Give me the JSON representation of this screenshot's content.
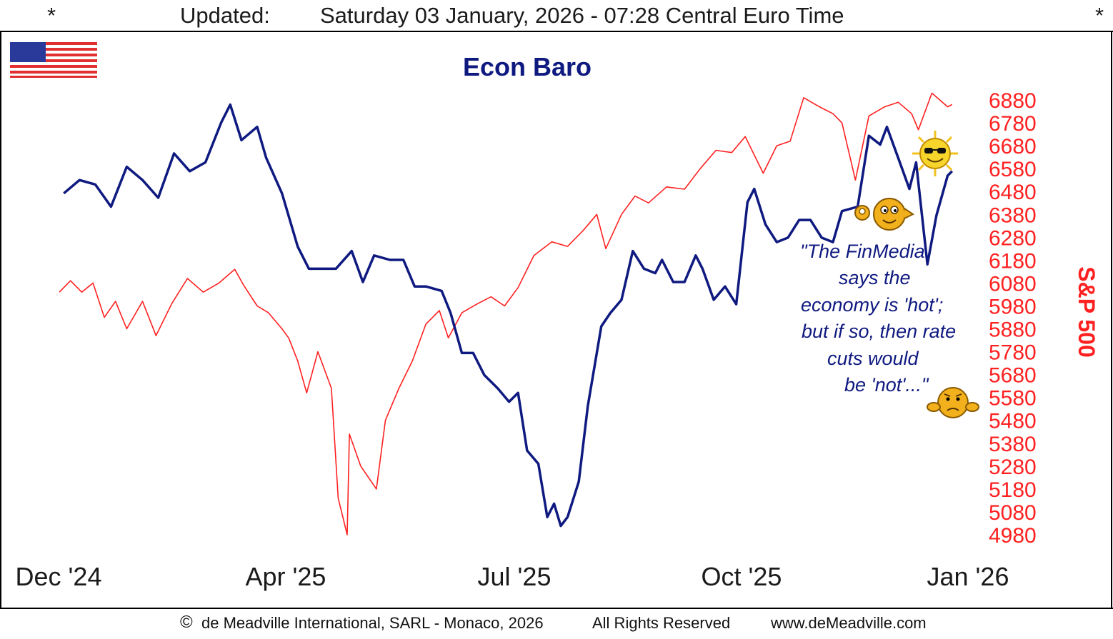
{
  "header": {
    "star_left": "*",
    "updated_label": "Updated:",
    "updated_text": "Saturday 03 January, 2026 - 07:28 Central Euro Time",
    "star_right": "*"
  },
  "flag_icon": "us-flag-icon",
  "annotation": [
    "\"The FinMedia",
    "says the",
    "economy is 'hot';",
    "but if so, then rate",
    "cuts would",
    "be 'not'...\""
  ],
  "icons": [
    "ok-gesture-smiley-icon",
    "sunglasses-sun-icon",
    "worried-smiley-icon"
  ],
  "footer": {
    "copyright_symbol": "©",
    "copyright": "de Meadville International, SARL - Monaco, 2026",
    "rights": "All Rights Reserved",
    "website": "www.deMeadville.com"
  },
  "colors": {
    "baro": "#0f1a80",
    "spx": "#ff2020",
    "title": "#0f1a80",
    "frame": "#000000"
  },
  "chart_data": {
    "type": "line",
    "title": "Econ Baro",
    "xlabel": "",
    "x_tick_labels": [
      "Dec '24",
      "Apr '25",
      "Jul '25",
      "Oct '25",
      "Jan '26"
    ],
    "x_tick_dates": [
      "2024-12-01",
      "2025-04-01",
      "2025-07-01",
      "2025-10-01",
      "2026-01-01"
    ],
    "xlim": [
      "2024-12-01",
      "2026-01-10"
    ],
    "y_right": {
      "label": "S&P 500",
      "ticks": [
        6880,
        6780,
        6680,
        6580,
        6480,
        6380,
        6280,
        6180,
        6080,
        5980,
        5880,
        5780,
        5680,
        5580,
        5480,
        5380,
        5280,
        5180,
        5080,
        4980
      ],
      "ylim": [
        4980,
        6880
      ]
    },
    "series": [
      {
        "name": "Econ Baro",
        "axis": "unlabeled",
        "ylim": [
          0,
          100
        ],
        "points": [
          [
            "2024-12-03",
            77
          ],
          [
            "2024-12-10",
            80
          ],
          [
            "2024-12-17",
            79
          ],
          [
            "2024-12-24",
            74
          ],
          [
            "2024-12-31",
            83
          ],
          [
            "2025-01-07",
            80
          ],
          [
            "2025-01-14",
            76
          ],
          [
            "2025-01-21",
            86
          ],
          [
            "2025-01-28",
            82
          ],
          [
            "2025-02-04",
            84
          ],
          [
            "2025-02-11",
            93
          ],
          [
            "2025-02-15",
            97
          ],
          [
            "2025-02-20",
            89
          ],
          [
            "2025-02-27",
            92
          ],
          [
            "2025-03-03",
            85
          ],
          [
            "2025-03-10",
            77
          ],
          [
            "2025-03-17",
            65
          ],
          [
            "2025-03-22",
            60
          ],
          [
            "2025-03-27",
            60
          ],
          [
            "2025-04-03",
            60
          ],
          [
            "2025-04-10",
            64
          ],
          [
            "2025-04-15",
            57
          ],
          [
            "2025-04-20",
            63
          ],
          [
            "2025-04-27",
            62
          ],
          [
            "2025-05-03",
            62
          ],
          [
            "2025-05-08",
            56
          ],
          [
            "2025-05-13",
            56
          ],
          [
            "2025-05-20",
            55
          ],
          [
            "2025-05-24",
            50
          ],
          [
            "2025-05-29",
            41
          ],
          [
            "2025-06-03",
            41
          ],
          [
            "2025-06-08",
            36
          ],
          [
            "2025-06-14",
            33
          ],
          [
            "2025-06-19",
            30
          ],
          [
            "2025-06-23",
            32
          ],
          [
            "2025-06-27",
            19
          ],
          [
            "2025-07-02",
            16
          ],
          [
            "2025-07-06",
            4
          ],
          [
            "2025-07-09",
            7
          ],
          [
            "2025-07-12",
            2
          ],
          [
            "2025-07-15",
            4
          ],
          [
            "2025-07-20",
            12
          ],
          [
            "2025-07-24",
            29
          ],
          [
            "2025-07-30",
            47
          ],
          [
            "2025-08-03",
            50
          ],
          [
            "2025-08-08",
            53
          ],
          [
            "2025-08-13",
            64
          ],
          [
            "2025-08-18",
            60
          ],
          [
            "2025-08-23",
            59
          ],
          [
            "2025-08-26",
            62
          ],
          [
            "2025-08-31",
            57
          ],
          [
            "2025-09-05",
            57
          ],
          [
            "2025-09-10",
            63
          ],
          [
            "2025-09-13",
            60
          ],
          [
            "2025-09-18",
            53
          ],
          [
            "2025-09-23",
            56
          ],
          [
            "2025-09-28",
            52
          ],
          [
            "2025-10-03",
            75
          ],
          [
            "2025-10-06",
            78
          ],
          [
            "2025-10-11",
            70
          ],
          [
            "2025-10-16",
            66
          ],
          [
            "2025-10-21",
            67
          ],
          [
            "2025-10-26",
            71
          ],
          [
            "2025-10-31",
            71
          ],
          [
            "2025-11-05",
            67
          ],
          [
            "2025-11-10",
            66
          ],
          [
            "2025-11-14",
            73
          ],
          [
            "2025-11-21",
            74
          ],
          [
            "2025-11-26",
            90
          ],
          [
            "2025-12-01",
            88
          ],
          [
            "2025-12-04",
            92
          ],
          [
            "2025-12-09",
            85
          ],
          [
            "2025-12-14",
            78
          ],
          [
            "2025-12-17",
            84
          ],
          [
            "2025-12-22",
            61
          ],
          [
            "2025-12-26",
            72
          ],
          [
            "2025-12-31",
            81
          ],
          [
            "2026-01-02",
            82
          ]
        ]
      },
      {
        "name": "S&P 500",
        "axis": "right",
        "points": [
          [
            "2024-12-01",
            6040
          ],
          [
            "2024-12-06",
            6090
          ],
          [
            "2024-12-11",
            6040
          ],
          [
            "2024-12-16",
            6080
          ],
          [
            "2024-12-21",
            5930
          ],
          [
            "2024-12-26",
            6000
          ],
          [
            "2024-12-31",
            5880
          ],
          [
            "2025-01-07",
            6000
          ],
          [
            "2025-01-13",
            5850
          ],
          [
            "2025-01-20",
            5990
          ],
          [
            "2025-01-27",
            6100
          ],
          [
            "2025-02-03",
            6040
          ],
          [
            "2025-02-10",
            6080
          ],
          [
            "2025-02-17",
            6140
          ],
          [
            "2025-02-21",
            6070
          ],
          [
            "2025-02-27",
            5980
          ],
          [
            "2025-03-04",
            5950
          ],
          [
            "2025-03-10",
            5880
          ],
          [
            "2025-03-13",
            5840
          ],
          [
            "2025-03-17",
            5740
          ],
          [
            "2025-03-21",
            5600
          ],
          [
            "2025-03-26",
            5780
          ],
          [
            "2025-04-01",
            5620
          ],
          [
            "2025-04-04",
            5140
          ],
          [
            "2025-04-08",
            4980
          ],
          [
            "2025-04-09",
            5420
          ],
          [
            "2025-04-14",
            5280
          ],
          [
            "2025-04-21",
            5180
          ],
          [
            "2025-04-25",
            5480
          ],
          [
            "2025-05-01",
            5620
          ],
          [
            "2025-05-07",
            5740
          ],
          [
            "2025-05-13",
            5900
          ],
          [
            "2025-05-19",
            5960
          ],
          [
            "2025-05-23",
            5840
          ],
          [
            "2025-05-29",
            5950
          ],
          [
            "2025-06-05",
            5990
          ],
          [
            "2025-06-11",
            6020
          ],
          [
            "2025-06-17",
            5980
          ],
          [
            "2025-06-23",
            6060
          ],
          [
            "2025-06-30",
            6200
          ],
          [
            "2025-07-08",
            6260
          ],
          [
            "2025-07-15",
            6240
          ],
          [
            "2025-07-22",
            6310
          ],
          [
            "2025-07-28",
            6380
          ],
          [
            "2025-08-01",
            6230
          ],
          [
            "2025-08-08",
            6380
          ],
          [
            "2025-08-14",
            6460
          ],
          [
            "2025-08-20",
            6430
          ],
          [
            "2025-08-28",
            6500
          ],
          [
            "2025-09-05",
            6490
          ],
          [
            "2025-09-12",
            6580
          ],
          [
            "2025-09-19",
            6660
          ],
          [
            "2025-09-26",
            6650
          ],
          [
            "2025-10-02",
            6720
          ],
          [
            "2025-10-10",
            6560
          ],
          [
            "2025-10-16",
            6680
          ],
          [
            "2025-10-22",
            6700
          ],
          [
            "2025-10-28",
            6890
          ],
          [
            "2025-11-04",
            6850
          ],
          [
            "2025-11-10",
            6820
          ],
          [
            "2025-11-14",
            6780
          ],
          [
            "2025-11-20",
            6530
          ],
          [
            "2025-11-26",
            6810
          ],
          [
            "2025-12-03",
            6850
          ],
          [
            "2025-12-09",
            6870
          ],
          [
            "2025-12-15",
            6820
          ],
          [
            "2025-12-18",
            6750
          ],
          [
            "2025-12-24",
            6910
          ],
          [
            "2025-12-31",
            6850
          ],
          [
            "2026-01-02",
            6860
          ]
        ]
      }
    ],
    "grid": false,
    "legend": "none"
  }
}
